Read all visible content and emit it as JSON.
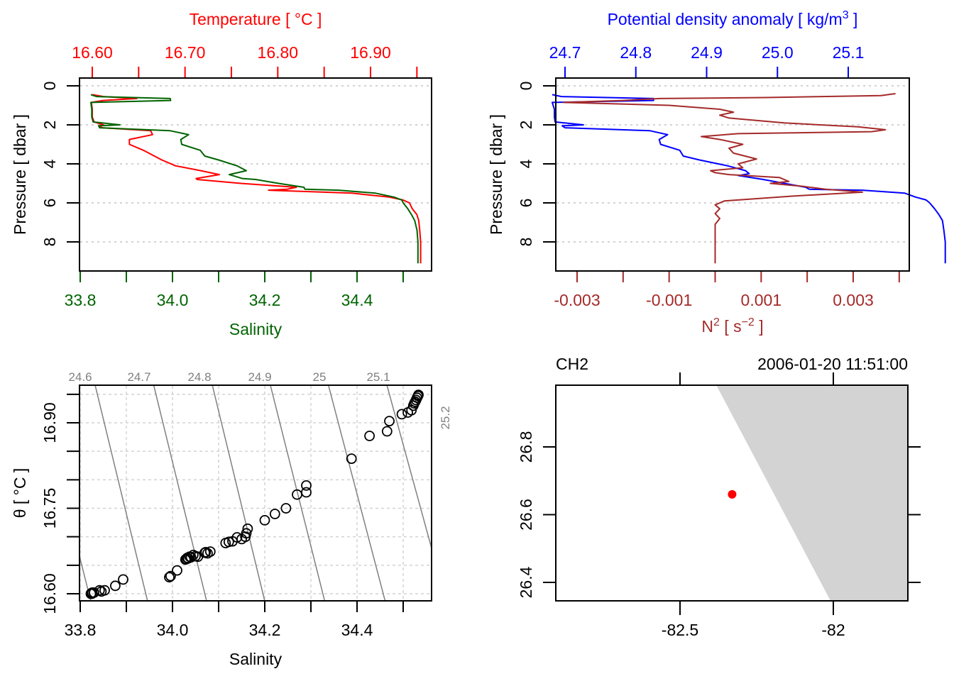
{
  "chart_data": [
    {
      "id": "ts-profile",
      "type": "line",
      "top_axis": {
        "label": "Temperature [ °C ]",
        "color": "#ff0000",
        "ticks": [
          16.6,
          16.65,
          16.7,
          16.75,
          16.8,
          16.85,
          16.9,
          16.95
        ],
        "tick_labels": [
          "16.60",
          "16.70",
          "16.80",
          "16.90"
        ],
        "labeled_ticks": [
          16.6,
          16.7,
          16.8,
          16.9
        ]
      },
      "bottom_axis": {
        "label": "Salinity",
        "color": "#006400",
        "ticks": [
          33.8,
          33.9,
          34.0,
          34.1,
          34.2,
          34.3,
          34.4,
          34.5
        ],
        "tick_labels": [
          "33.8",
          "34.0",
          "34.2",
          "34.4"
        ],
        "labeled_ticks": [
          33.8,
          34.0,
          34.2,
          34.4
        ]
      },
      "y_axis": {
        "label": "Pressure [ dbar ]",
        "ticks": [
          0,
          2,
          4,
          6,
          8
        ],
        "tick_labels": [
          "0",
          "2",
          "4",
          "6",
          "8"
        ],
        "reversed": true,
        "ylim": [
          9.6,
          -0.4
        ]
      },
      "xlim_salinity": [
        33.8,
        34.56
      ],
      "xlim_temperature": [
        16.587,
        16.967
      ],
      "grid": "horizontal-dotted",
      "series": [
        {
          "name": "Temperature",
          "color": "#ff0000",
          "axis": "top",
          "pressure": [
            0.45,
            0.55,
            0.65,
            0.75,
            0.85,
            1.2,
            1.6,
            1.85,
            2.0,
            2.05,
            2.15,
            2.3,
            2.5,
            2.75,
            3.0,
            3.3,
            3.6,
            3.8,
            4.1,
            4.35,
            4.55,
            4.75,
            4.8,
            5.0,
            5.2,
            5.3,
            5.35,
            5.5,
            5.7,
            5.85,
            6.0,
            6.3,
            6.6,
            6.9,
            7.4,
            8.0,
            8.5,
            9.1
          ],
          "values": [
            16.6,
            16.612,
            16.648,
            16.612,
            16.599,
            16.6,
            16.6,
            16.602,
            16.612,
            16.607,
            16.611,
            16.663,
            16.665,
            16.64,
            16.64,
            16.655,
            16.667,
            16.675,
            16.69,
            16.717,
            16.737,
            16.712,
            16.713,
            16.76,
            16.82,
            16.81,
            16.79,
            16.88,
            16.92,
            16.935,
            16.942,
            16.945,
            16.95,
            16.952,
            16.953,
            16.954,
            16.954,
            16.954
          ]
        },
        {
          "name": "Salinity",
          "color": "#006400",
          "axis": "bottom",
          "pressure": [
            0.45,
            0.55,
            0.65,
            0.75,
            0.85,
            1.2,
            1.6,
            1.85,
            2.0,
            2.05,
            2.15,
            2.3,
            2.5,
            2.75,
            3.0,
            3.3,
            3.6,
            3.8,
            4.1,
            4.35,
            4.55,
            4.75,
            4.8,
            5.0,
            5.2,
            5.3,
            5.35,
            5.5,
            5.7,
            5.85,
            6.0,
            6.3,
            6.6,
            6.9,
            7.4,
            8.0,
            8.5,
            9.1
          ],
          "values": [
            33.823,
            33.835,
            33.995,
            33.996,
            33.823,
            33.825,
            33.825,
            33.828,
            33.886,
            33.84,
            33.842,
            33.995,
            34.035,
            34.018,
            34.02,
            34.06,
            34.07,
            34.1,
            34.14,
            34.16,
            34.123,
            34.151,
            34.18,
            34.23,
            34.285,
            34.287,
            34.36,
            34.44,
            34.48,
            34.497,
            34.5,
            34.51,
            34.518,
            34.525,
            34.53,
            34.532,
            34.532,
            34.532
          ]
        }
      ]
    },
    {
      "id": "density-n2-profile",
      "type": "line",
      "top_axis": {
        "label": "Potential density anomaly [ kg/m",
        "label_sup": "3",
        "label_end": " ]",
        "color": "#0000ff",
        "ticks": [
          24.7,
          24.8,
          24.9,
          25.0,
          25.1
        ],
        "tick_labels": [
          "24.7",
          "24.8",
          "24.9",
          "25.0",
          "25.1"
        ],
        "labeled_ticks": [
          24.7,
          24.8,
          24.9,
          25.0,
          25.1
        ]
      },
      "bottom_axis": {
        "label": "N",
        "label_sup": "2",
        "label_mid": " [ s",
        "label_sup2": "−2",
        "label_end": " ]",
        "color": "#a52a2a",
        "ticks": [
          -0.003,
          -0.002,
          -0.001,
          0.0,
          0.001,
          0.002,
          0.003,
          0.004
        ],
        "tick_labels": [
          "-0.003",
          "-0.001",
          "0.001",
          "0.003"
        ],
        "labeled_ticks": [
          -0.003,
          -0.001,
          0.001,
          0.003
        ]
      },
      "y_axis": {
        "label": "Pressure [ dbar ]",
        "ticks": [
          0,
          2,
          4,
          6,
          8
        ],
        "tick_labels": [
          "0",
          "2",
          "4",
          "6",
          "8"
        ],
        "reversed": true,
        "ylim": [
          9.6,
          -0.4
        ]
      },
      "grid": "horizontal-dotted",
      "series": [
        {
          "name": "Potential density anomaly",
          "color": "#0000ff",
          "axis": "top",
          "pressure": [
            0.45,
            0.55,
            0.65,
            0.75,
            0.85,
            1.2,
            1.6,
            1.85,
            2.0,
            2.05,
            2.15,
            2.3,
            2.5,
            2.75,
            3.0,
            3.3,
            3.6,
            3.8,
            4.1,
            4.35,
            4.5,
            4.6,
            4.8,
            5.0,
            5.2,
            5.3,
            5.35,
            5.5,
            5.7,
            5.85,
            6.0,
            6.3,
            6.6,
            6.9,
            7.4,
            8.0,
            8.5,
            9.1
          ],
          "values": [
            24.682,
            24.695,
            24.825,
            24.825,
            24.682,
            24.685,
            24.685,
            24.686,
            24.726,
            24.696,
            24.7,
            24.82,
            24.845,
            24.833,
            24.835,
            24.862,
            24.867,
            24.89,
            24.93,
            24.955,
            24.96,
            24.945,
            24.98,
            25.01,
            25.04,
            25.045,
            25.12,
            25.18,
            25.195,
            25.21,
            25.215,
            25.222,
            25.228,
            25.233,
            25.235,
            25.237,
            25.237,
            25.237
          ]
        },
        {
          "name": "N2",
          "color": "#a52a2a",
          "axis": "bottom",
          "pressure": [
            0.4,
            0.5,
            0.6,
            0.65,
            0.75,
            0.85,
            1.0,
            1.2,
            1.35,
            1.5,
            1.65,
            1.9,
            2.1,
            2.25,
            2.35,
            2.45,
            2.6,
            2.75,
            3.0,
            3.2,
            3.45,
            3.75,
            4.0,
            4.2,
            4.35,
            4.45,
            4.55,
            4.7,
            4.9,
            5.0,
            5.15,
            5.3,
            5.45,
            5.65,
            5.9,
            6.1,
            6.3,
            6.55,
            6.8,
            7.1,
            7.5,
            8.0,
            8.5,
            9.1
          ],
          "values": [
            0.00392,
            0.0036,
            0.0011,
            -0.0012,
            -0.002,
            -0.0033,
            -0.001,
            0.0001,
            0.0004,
            0.0001,
            0.0003,
            0.0015,
            0.0031,
            0.0037,
            0.0034,
            0.0005,
            -0.0003,
            0.0001,
            0.0006,
            0.0003,
            0.0004,
            0.0009,
            0.0005,
            0.0006,
            -0.0001,
            0.0,
            0.0003,
            0.0014,
            0.0016,
            0.0012,
            0.0019,
            0.0024,
            0.0032,
            0.0017,
            0.0002,
            0.0,
            0.0001,
            0.0,
            0.0001,
            0.0,
            0.0,
            0.0,
            0.0,
            0.0
          ]
        }
      ]
    },
    {
      "id": "ts-diagram",
      "type": "scatter",
      "xlabel": "Salinity",
      "ylabel": "θ [ °C ]",
      "xlim": [
        33.8,
        34.56
      ],
      "ylim": [
        16.587,
        16.965
      ],
      "x_ticks": [
        33.8,
        33.9,
        34.0,
        34.1,
        34.2,
        34.3,
        34.4,
        34.5
      ],
      "x_tick_labels": [
        "33.8",
        "34.0",
        "34.2",
        "34.4"
      ],
      "x_labeled_ticks": [
        33.8,
        34.0,
        34.2,
        34.4
      ],
      "y_ticks": [
        16.6,
        16.65,
        16.7,
        16.75,
        16.8,
        16.85,
        16.9,
        16.95
      ],
      "y_tick_labels": [
        "16.60",
        "16.75",
        "16.90"
      ],
      "y_labeled_ticks": [
        16.6,
        16.75,
        16.9
      ],
      "grid": true,
      "isopycnals": {
        "color": "#808080",
        "labels": [
          "24.6",
          "24.7",
          "24.8",
          "24.9",
          "25",
          "25.1",
          "25.2"
        ],
        "values": [
          24.6,
          24.7,
          24.8,
          24.9,
          25.0,
          25.1,
          25.2
        ],
        "label_side": [
          "top",
          "top",
          "top",
          "top",
          "top",
          "top",
          "right"
        ]
      },
      "points": {
        "salinity": [
          33.823,
          33.824,
          33.825,
          33.826,
          33.83,
          33.842,
          33.846,
          33.853,
          33.876,
          33.893,
          33.993,
          33.996,
          34.01,
          34.028,
          34.03,
          34.032,
          34.034,
          34.037,
          34.04,
          34.045,
          34.05,
          34.055,
          34.07,
          34.072,
          34.076,
          34.082,
          34.115,
          34.122,
          34.13,
          34.14,
          34.15,
          34.158,
          34.16,
          34.163,
          34.2,
          34.222,
          34.246,
          34.27,
          34.29,
          34.29,
          34.388,
          34.427,
          34.465,
          34.47,
          34.497,
          34.51,
          34.518,
          34.522,
          34.524,
          34.526,
          34.528,
          34.53,
          34.532,
          34.533
        ],
        "theta": [
          16.6,
          16.601,
          16.6,
          16.602,
          16.602,
          16.606,
          16.604,
          16.606,
          16.614,
          16.625,
          16.629,
          16.631,
          16.641,
          16.66,
          16.661,
          16.663,
          16.662,
          16.665,
          16.664,
          16.668,
          16.666,
          16.665,
          16.672,
          16.673,
          16.671,
          16.674,
          16.689,
          16.691,
          16.692,
          16.699,
          16.696,
          16.7,
          16.706,
          16.714,
          16.729,
          16.74,
          16.75,
          16.774,
          16.778,
          16.79,
          16.837,
          16.877,
          16.885,
          16.903,
          16.915,
          16.918,
          16.922,
          16.93,
          16.934,
          16.937,
          16.94,
          16.944,
          16.947,
          16.949
        ]
      }
    },
    {
      "id": "station-map",
      "type": "scatter",
      "title_left": "CH2",
      "title_right": "2006-01-20 11:51:00",
      "xlim": [
        -82.92,
        -81.69
      ],
      "ylim": [
        26.33,
        26.98
      ],
      "x_ticks": [
        -82.5,
        -82.0
      ],
      "x_tick_labels": [
        "-82.5",
        "-82"
      ],
      "y_ticks": [
        26.4,
        26.6,
        26.8
      ],
      "y_tick_labels": [
        "26.4",
        "26.6",
        "26.8"
      ],
      "land_color": "#d3d3d3",
      "coastline": [
        [
          -82.38,
          26.98
        ],
        [
          -82.0,
          26.33
        ],
        [
          -81.69,
          26.33
        ],
        [
          -81.69,
          26.98
        ]
      ],
      "station": {
        "lon": -82.33,
        "lat": 26.66,
        "color": "#ff0000"
      }
    }
  ]
}
